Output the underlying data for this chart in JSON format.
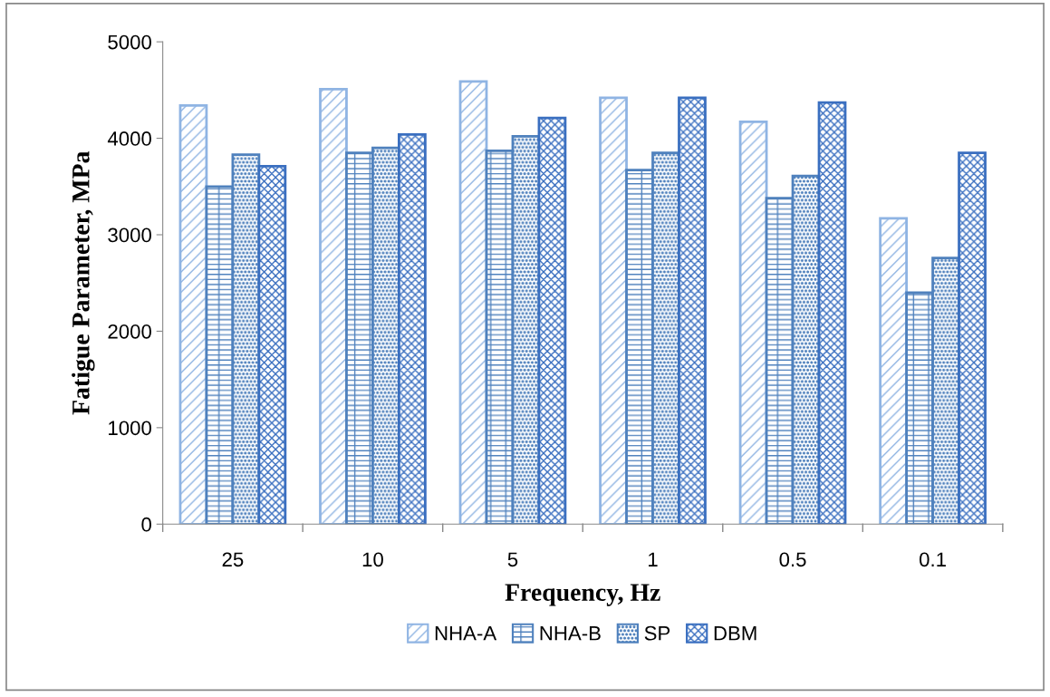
{
  "chart_data": {
    "type": "bar",
    "xlabel": "Frequency, Hz",
    "ylabel": "Fatigue Parameter, MPa",
    "categories": [
      "25",
      "10",
      "5",
      "1",
      "0.5",
      "0.1"
    ],
    "series": [
      {
        "name": "NHA-A",
        "color": "#8fb4e3",
        "values": [
          4340,
          4510,
          4590,
          4420,
          4170,
          3170
        ]
      },
      {
        "name": "NHA-B",
        "color": "#4f81bd",
        "values": [
          3500,
          3850,
          3870,
          3670,
          3380,
          2400
        ]
      },
      {
        "name": "SP",
        "color": "#4f81bd",
        "values": [
          3830,
          3900,
          4020,
          3850,
          3610,
          2760
        ]
      },
      {
        "name": "DBM",
        "color": "#3a6fc0",
        "values": [
          3710,
          4040,
          4210,
          4420,
          4370,
          3850
        ]
      }
    ],
    "ylim": [
      0,
      5000
    ],
    "yticks": [
      0,
      1000,
      2000,
      3000,
      4000,
      5000
    ],
    "grid": false,
    "legend": "bottom"
  }
}
